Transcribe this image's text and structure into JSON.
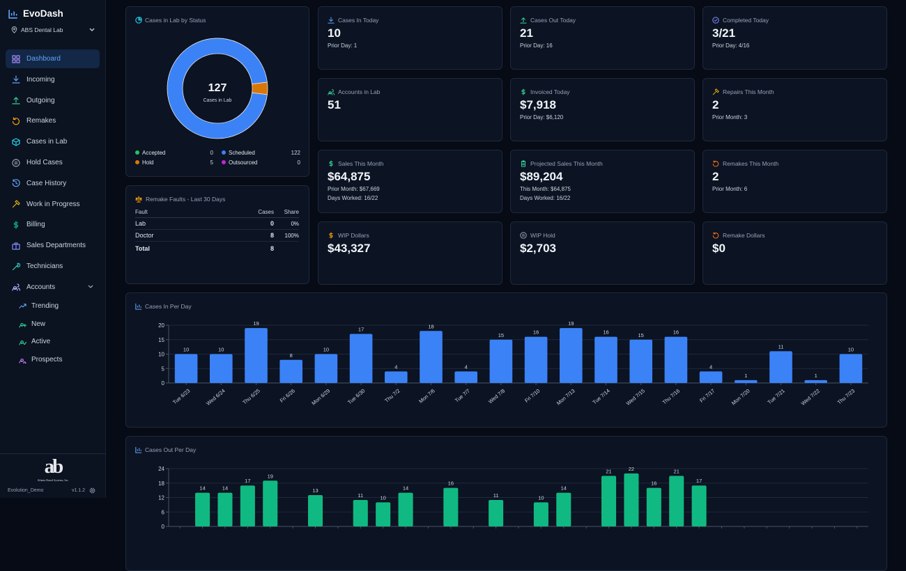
{
  "sidebar": {
    "brand": "EvoDash",
    "lab": "ABS Dental Lab",
    "nav": [
      "Dashboard",
      "Incoming",
      "Outgoing",
      "Remakes",
      "Cases in Lab",
      "Hold Cases",
      "Case History",
      "Work in Progress",
      "Billing",
      "Sales Departments",
      "Technicians",
      "Accounts"
    ],
    "subnav": [
      "Trending",
      "New",
      "Active",
      "Prospects"
    ],
    "footer": {
      "logo": "ab",
      "company": "Atlanta Based Systems, Inc.",
      "user": "Evolution_Demo",
      "version": "v1.1.2"
    }
  },
  "cards": [
    {
      "label": "Cases In Today",
      "value": "10",
      "notes": [
        "Prior Day: 1"
      ]
    },
    {
      "label": "Cases Out Today",
      "value": "21",
      "notes": [
        "Prior Day: 16"
      ]
    },
    {
      "label": "Completed Today",
      "value": "3/21",
      "notes": [
        "Prior Day: 4/16"
      ]
    },
    {
      "label": "Accounts in Lab",
      "value": "51"
    },
    {
      "label": "Invoiced Today",
      "value": "$7,918",
      "notes": [
        "Prior Day: $6,120"
      ]
    },
    {
      "label": "Repairs This Month",
      "value": "2",
      "notes": [
        "Prior Month: 3"
      ]
    },
    {
      "label": "Sales This Month",
      "value": "$64,875",
      "notes": [
        "Prior Month: $67,669",
        "Days Worked: 16/22"
      ]
    },
    {
      "label": "Projected Sales This Month",
      "value": "$89,204",
      "notes": [
        "This Month: $64,875",
        "Days Worked: 16/22"
      ]
    },
    {
      "label": "Remakes This Month",
      "value": "2",
      "notes": [
        "Prior Month: 6"
      ]
    },
    {
      "label": "WIP Dollars",
      "value": "$43,327"
    },
    {
      "label": "WIP Hold",
      "value": "$2,703"
    },
    {
      "label": "Remake Dollars",
      "value": "$0"
    }
  ],
  "remake_faults": {
    "title": "Remake Faults - Last 30 Days",
    "header": [
      "Fault",
      "Cases",
      "Share"
    ],
    "rows": [
      [
        "Lab",
        "0",
        "0%"
      ],
      [
        "Doctor",
        "8",
        "100%"
      ]
    ],
    "total": [
      "Total",
      "8"
    ]
  },
  "chart_data": [
    {
      "type": "pie",
      "title": "Cases in Lab by Status",
      "center_value": 127,
      "center_label": "Cases in Lab",
      "categories": [
        "Accepted",
        "Scheduled",
        "Hold",
        "Outsourced"
      ],
      "values": [
        0,
        122,
        5,
        0
      ],
      "colors": [
        "#22c55e",
        "#3b82f6",
        "#d97706",
        "#c026d3"
      ]
    },
    {
      "type": "bar",
      "title": "Cases In Per Day",
      "color": "#3b82f6",
      "categories": [
        "Tue 6/23",
        "Wed 6/24",
        "Thu 6/25",
        "Fri 6/26",
        "Mon 6/29",
        "Tue 6/30",
        "Thu 7/2",
        "Mon 7/6",
        "Tue 7/7",
        "Wed 7/8",
        "Fri 7/10",
        "Mon 7/13",
        "Tue 7/14",
        "Wed 7/15",
        "Thu 7/16",
        "Fri 7/17",
        "Mon 7/20",
        "Tue 7/21",
        "Wed 7/22",
        "Thu 7/23"
      ],
      "values": [
        10,
        10,
        19,
        8,
        10,
        17,
        4,
        18,
        4,
        15,
        16,
        19,
        16,
        15,
        16,
        4,
        1,
        11,
        1,
        10
      ],
      "ylim": [
        0,
        20
      ],
      "yticks": [
        0,
        5,
        10,
        15,
        20
      ],
      "grid": true
    },
    {
      "type": "bar",
      "title": "Cases Out Per Day",
      "color": "#10b981",
      "categories": [
        null,
        null,
        null,
        null,
        null,
        null,
        null,
        null,
        null,
        null,
        null,
        null,
        null,
        null,
        null,
        null,
        null,
        null,
        null,
        null,
        null,
        null,
        null,
        null,
        null,
        null,
        null,
        null,
        null,
        null,
        null
      ],
      "values": [
        null,
        14,
        14,
        17,
        19,
        null,
        13,
        null,
        11,
        10,
        14,
        null,
        16,
        null,
        11,
        null,
        10,
        14,
        null,
        21,
        22,
        16,
        21,
        17,
        null,
        null,
        null,
        null,
        null,
        null,
        null
      ],
      "ylim": [
        0,
        24
      ],
      "yticks": [
        0,
        6,
        12,
        18,
        24
      ],
      "grid": true
    }
  ]
}
